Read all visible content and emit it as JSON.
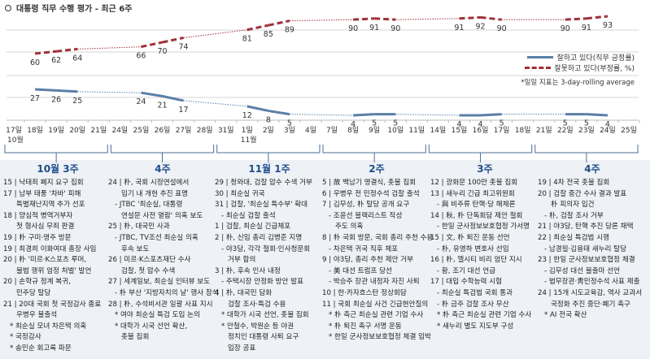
{
  "title": "대통령 직무 수행 평가 - 최근 6주",
  "legend": {
    "positive": "잘하고 있다(직무 긍정률)",
    "negative": "잘못하고 있다(부정률, %)"
  },
  "note": "*일일 지표는 3-day-rolling average",
  "colors": {
    "positive": "#5a7fa8",
    "negative": "#a0303a"
  },
  "chart_data": {
    "type": "line",
    "x": [
      "17일",
      "18일",
      "19일",
      "20일",
      "21일",
      "24일",
      "25일",
      "26일",
      "27일",
      "28일",
      "31일",
      "1일",
      "2일",
      "3일",
      "4일",
      "7일",
      "8일",
      "9일",
      "10일",
      "11일",
      "14일",
      "15일",
      "16일",
      "17일",
      "18일",
      "21일",
      "22일",
      "23일",
      "24일",
      "25일"
    ],
    "month_labels": [
      {
        "at": "17일",
        "label": "10월"
      },
      {
        "at": "1일",
        "label": "11월"
      }
    ],
    "series": [
      {
        "name": "잘하고 있다(직무 긍정률)",
        "style": "solid",
        "values": [
          null,
          27,
          26,
          25,
          null,
          null,
          24,
          21,
          17,
          null,
          null,
          12,
          8,
          5,
          null,
          null,
          4,
          5,
          5,
          null,
          null,
          4,
          4,
          5,
          null,
          null,
          5,
          5,
          4,
          null
        ]
      },
      {
        "name": "잘못하고 있다(부정률, %)",
        "style": "dashed",
        "values": [
          null,
          60,
          62,
          64,
          null,
          null,
          66,
          70,
          74,
          null,
          null,
          81,
          85,
          89,
          null,
          null,
          90,
          91,
          90,
          null,
          null,
          91,
          92,
          90,
          null,
          null,
          90,
          91,
          93,
          null
        ]
      }
    ],
    "grid": true
  },
  "weeks": [
    {
      "label": "10월 3주",
      "lines": [
        [
          "d",
          "15 | 낙태죄 폐지 요구 집회"
        ],
        [
          "d",
          "17 | 남부 태풍 '차바' 피해"
        ],
        [
          "c",
          "특별재난지역 추가 선포"
        ],
        [
          "d",
          "18 | 양심적 병역거부자"
        ],
        [
          "c",
          "첫 형사심 무죄 판결"
        ],
        [
          "d",
          "19 | 朴 구미·영주 방문"
        ],
        [
          "d",
          "19 | 최경희 이화여대 총장 사임"
        ],
        [
          "d",
          "20 | 朴 '미르·K스포츠 루머,"
        ],
        [
          "c",
          "불법 행위 엄정 처벌' 발언"
        ],
        [
          "d",
          "20 | 손학규 정계 복귀,"
        ],
        [
          "c",
          "민주당 탈당"
        ],
        [
          "d",
          "21 | 20대 국회 첫 국정감사 종료"
        ],
        [
          "c",
          "우병우 불출석"
        ],
        [
          "b",
          "* 최순실 모녀 차은택 의혹"
        ],
        [
          "b",
          "* 국정감사"
        ],
        [
          "b",
          "* 송민순 회고록 파문"
        ]
      ]
    },
    {
      "label": "4주",
      "lines": [
        [
          "d",
          "24 | 朴, 국회 시정연설에서"
        ],
        [
          "c",
          "임기 내 개헌 추진 표명"
        ],
        [
          "s",
          "- JTBC '최순실, 대통령"
        ],
        [
          "c",
          "연설문 사전 열람' 의혹 보도"
        ],
        [
          "d",
          "25 | 朴, 대국민 사과"
        ],
        [
          "s",
          "- JTBC, TV조선 최순실 의혹"
        ],
        [
          "c",
          "후속 보도"
        ],
        [
          "d",
          "26 | 미르·K스포츠재단 수사"
        ],
        [
          "c",
          "검찰, 첫 압수 수색"
        ],
        [
          "d",
          "27 | 세계일보, 최순실 인터뷰 보도"
        ],
        [
          "s",
          "- 朴 부산 '지방자치의 날' 행사 참석"
        ],
        [
          "d",
          "28 | 朴, 수석비서관 일괄 사표 지시"
        ],
        [
          "b",
          "* 여야 최순실 특검 도입 논의"
        ],
        [
          "b",
          "* 대학가 시국 선언 확산,"
        ],
        [
          "c",
          "촛불 집회"
        ]
      ]
    },
    {
      "label": "11월 1주",
      "lines": [
        [
          "d",
          "29 | 청와대, 검찰 압수 수색 거부"
        ],
        [
          "d",
          "30 | 최순실 귀국"
        ],
        [
          "d",
          "31 | 검찰, '최순실 특수부' 확대"
        ],
        [
          "s",
          "- 최순실 검찰 출석"
        ],
        [
          "d",
          " 1 | 검찰, 최순실 긴급체포"
        ],
        [
          "d",
          " 2 | 朴, 신임 총리 김병준 지명"
        ],
        [
          "s",
          "- 야3당, 각각 철회·인사청문회"
        ],
        [
          "c",
          "거부 합의"
        ],
        [
          "d",
          " 3 | 朴, 후속 인사 내정"
        ],
        [
          "s",
          "- 주택시장 안정화 방안 발표"
        ],
        [
          "d",
          " 4 | 朴, 대국민 담화"
        ],
        [
          "c",
          "검찰 조사·특검 수용"
        ],
        [
          "b",
          "* 대학가 시국 선언, 촛불 집회"
        ],
        [
          "b",
          "* 안철수, 박원순 등 야권"
        ],
        [
          "c",
          "정치인 대통령 사퇴 요구"
        ],
        [
          "c",
          "입장 공표"
        ]
      ]
    },
    {
      "label": "2주",
      "lines": [
        [
          "d",
          " 5 | 故 백남기 영결식, 촛불 집회"
        ],
        [
          "d",
          " 6 | 우병우 전 민정수석 검찰 출석"
        ],
        [
          "d",
          " 7 | 김무성, 朴 탈당 공개 요구"
        ],
        [
          "s",
          "- 조윤선 블랙리스트 작성"
        ],
        [
          "c",
          "주도 의혹"
        ],
        [
          "d",
          " 8 | 朴 국회 방문, 국회 총리 추천 수용"
        ],
        [
          "s",
          "- 차은택 귀국 직후 체포"
        ],
        [
          "d",
          " 9 | 야3당, 총리 추천 제안 거부"
        ],
        [
          "s",
          "- 美 대선 트럼프 당선"
        ],
        [
          "s",
          "- 박승주 장관 내정자 자진 사퇴"
        ],
        [
          "d",
          "10 | 한·카자흐스탄 정상회담"
        ],
        [
          "d",
          "11 | 국회 최순실 사건 긴급현안질의"
        ],
        [
          "b",
          "* 朴 측근 최순실 관련 기업 수사"
        ],
        [
          "b",
          "* 朴 퇴진 촉구 서명 운동"
        ],
        [
          "b",
          "* 한일 군사정보보호협정 체결 임박"
        ]
      ]
    },
    {
      "label": "3주",
      "lines": [
        [
          "d",
          "12 | 광화문 100만 촛불 집회"
        ],
        [
          "d",
          "13 | 새누리 긴급 최고위원회"
        ],
        [
          "s",
          "- 與 비주류 탄핵·당 해체론"
        ],
        [
          "d",
          "14 | 秋, 朴 단독회담 제안 철회"
        ],
        [
          "s",
          "- 한일 군사정보보호협정 가서명"
        ],
        [
          "d",
          "15 | 文, 朴 퇴진 운동 선언"
        ],
        [
          "s",
          "- 朴, 유영하 변호사 선임"
        ],
        [
          "d",
          "16 | 朴, 엘시티 비리 엄단 지시"
        ],
        [
          "s",
          "- 황, 조기 대선 언급"
        ],
        [
          "d",
          "17 | 대입 수학능력 시험"
        ],
        [
          "s",
          "- 최순실 특검법 국회 통과"
        ],
        [
          "s",
          "- 朴 금주 검찰 조사 무산"
        ],
        [
          "b",
          "* 朴 측근 최순실 관련 기업 수사"
        ],
        [
          "b",
          "* 새누리 별도 지도부 구성"
        ]
      ]
    },
    {
      "label": "4주",
      "lines": [
        [
          "d",
          "19 | 4차 전국 촛불 집회"
        ],
        [
          "d",
          "20 | 검찰 중간 수사 결과 발표"
        ],
        [
          "c",
          "朴 피의자 입건"
        ],
        [
          "s",
          "- 朴, 검찰 조사 거부"
        ],
        [
          "d",
          "21 | 야3당, 탄핵 추진 당론 채택"
        ],
        [
          "d",
          "22 | 최순실 특검법 시행"
        ],
        [
          "s",
          "- 남경필·김용태 새누리 탈당"
        ],
        [
          "d",
          "23 | 한일 군사정보보호협정 체결"
        ],
        [
          "s",
          "- 김무성 대선 불출마 선언"
        ],
        [
          "s",
          "- 법무장관·靑민정수석 사표 제출"
        ],
        [
          "d",
          "24 | 15개 시도교육감, 역사 교과서"
        ],
        [
          "c",
          "국정화 추진 중단·폐기 촉구"
        ],
        [
          "b",
          "* AI 전국 확산"
        ]
      ]
    }
  ]
}
